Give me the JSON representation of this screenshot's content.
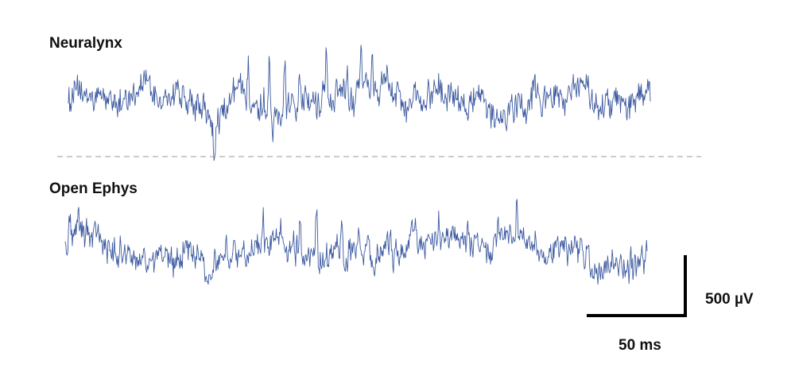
{
  "chart_data": {
    "type": "line",
    "colors": {
      "trace": "#3d5aa0",
      "divider": "#9a9a9a",
      "scalebar": "#000000"
    },
    "divider_style": "dashed",
    "series": [
      {
        "name": "Neuralynx",
        "points_per_trace": 900,
        "envelope": [
          [
            0.0,
            0.1
          ],
          [
            0.02,
            0.25
          ],
          [
            0.04,
            0.05
          ],
          [
            0.06,
            0.15
          ],
          [
            0.08,
            -0.05
          ],
          [
            0.1,
            0.1
          ],
          [
            0.13,
            0.5
          ],
          [
            0.16,
            -0.05
          ],
          [
            0.19,
            0.3
          ],
          [
            0.21,
            -0.05
          ],
          [
            0.23,
            -0.25
          ],
          [
            0.25,
            -0.6
          ],
          [
            0.27,
            -0.2
          ],
          [
            0.29,
            0.3
          ],
          [
            0.31,
            0.2
          ],
          [
            0.33,
            -0.1
          ],
          [
            0.35,
            -0.05
          ],
          [
            0.37,
            -0.3
          ],
          [
            0.39,
            0.1
          ],
          [
            0.41,
            0.2
          ],
          [
            0.43,
            -0.05
          ],
          [
            0.45,
            0.05
          ],
          [
            0.47,
            0.15
          ],
          [
            0.49,
            0.0
          ],
          [
            0.51,
            0.4
          ],
          [
            0.53,
            0.3
          ],
          [
            0.55,
            0.55
          ],
          [
            0.57,
            0.2
          ],
          [
            0.58,
            -0.4
          ],
          [
            0.6,
            0.3
          ],
          [
            0.62,
            0.1
          ],
          [
            0.64,
            0.3
          ],
          [
            0.66,
            0.05
          ],
          [
            0.68,
            -0.2
          ],
          [
            0.7,
            0.0
          ],
          [
            0.72,
            -0.35
          ],
          [
            0.74,
            -0.45
          ],
          [
            0.76,
            -0.2
          ],
          [
            0.78,
            -0.1
          ],
          [
            0.8,
            0.3
          ],
          [
            0.82,
            0.1
          ],
          [
            0.84,
            0.2
          ],
          [
            0.86,
            0.0
          ],
          [
            0.88,
            0.55
          ],
          [
            0.9,
            0.1
          ],
          [
            0.92,
            -0.15
          ],
          [
            0.94,
            0.0
          ],
          [
            0.96,
            -0.2
          ],
          [
            0.98,
            0.25
          ],
          [
            1.0,
            0.2
          ]
        ],
        "spikes": [
          [
            0.309,
            1.3
          ],
          [
            0.345,
            1.35
          ],
          [
            0.372,
            1.4
          ],
          [
            0.397,
            1.05
          ],
          [
            0.443,
            1.45
          ],
          [
            0.479,
            1.0
          ],
          [
            0.503,
            1.4
          ],
          [
            0.522,
            0.75
          ],
          [
            0.618,
            0.95
          ],
          [
            0.594,
            0.6
          ],
          [
            0.438,
            0.7
          ],
          [
            0.351,
            -0.7
          ],
          [
            0.251,
            -0.85
          ]
        ]
      },
      {
        "name": "Open Ephys",
        "points_per_trace": 900,
        "envelope": [
          [
            0.0,
            0.25
          ],
          [
            0.01,
            0.7
          ],
          [
            0.03,
            0.6
          ],
          [
            0.05,
            0.45
          ],
          [
            0.07,
            0.2
          ],
          [
            0.09,
            0.0
          ],
          [
            0.11,
            0.05
          ],
          [
            0.13,
            -0.3
          ],
          [
            0.15,
            -0.1
          ],
          [
            0.17,
            0.05
          ],
          [
            0.19,
            -0.3
          ],
          [
            0.21,
            0.15
          ],
          [
            0.23,
            -0.2
          ],
          [
            0.25,
            -0.55
          ],
          [
            0.27,
            -0.1
          ],
          [
            0.29,
            0.1
          ],
          [
            0.31,
            0.05
          ],
          [
            0.33,
            0.1
          ],
          [
            0.35,
            0.2
          ],
          [
            0.37,
            0.45
          ],
          [
            0.39,
            0.1
          ],
          [
            0.41,
            -0.2
          ],
          [
            0.43,
            0.05
          ],
          [
            0.45,
            -0.2
          ],
          [
            0.47,
            0.1
          ],
          [
            0.49,
            -0.1
          ],
          [
            0.51,
            0.05
          ],
          [
            0.53,
            -0.1
          ],
          [
            0.55,
            0.15
          ],
          [
            0.57,
            -0.05
          ],
          [
            0.59,
            0.3
          ],
          [
            0.61,
            0.15
          ],
          [
            0.63,
            0.45
          ],
          [
            0.65,
            0.4
          ],
          [
            0.67,
            0.45
          ],
          [
            0.69,
            0.3
          ],
          [
            0.71,
            0.1
          ],
          [
            0.73,
            0.25
          ],
          [
            0.75,
            0.5
          ],
          [
            0.77,
            0.45
          ],
          [
            0.79,
            0.35
          ],
          [
            0.81,
            0.15
          ],
          [
            0.83,
            0.0
          ],
          [
            0.85,
            0.15
          ],
          [
            0.87,
            0.05
          ],
          [
            0.89,
            -0.05
          ],
          [
            0.91,
            -0.45
          ],
          [
            0.93,
            -0.25
          ],
          [
            0.95,
            -0.3
          ],
          [
            0.97,
            -0.4
          ],
          [
            1.0,
            -0.1
          ]
        ],
        "spikes": [
          [
            0.34,
            0.9
          ],
          [
            0.404,
            1.3
          ],
          [
            0.432,
            1.55
          ],
          [
            0.475,
            1.0
          ],
          [
            0.505,
            0.7
          ],
          [
            0.559,
            0.95
          ],
          [
            0.603,
            0.65
          ],
          [
            0.642,
            1.1
          ],
          [
            0.692,
            0.7
          ],
          [
            0.776,
            1.45
          ],
          [
            0.808,
            0.6
          ],
          [
            0.86,
            0.35
          ]
        ]
      }
    ],
    "scale_bar": {
      "x_label": "50 ms",
      "y_label": "500 µV"
    }
  }
}
